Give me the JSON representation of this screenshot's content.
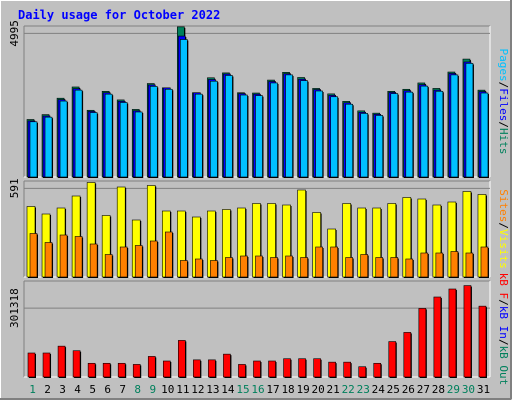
{
  "title": "Daily usage for October 2022",
  "colors": {
    "background": "#c0c0c0",
    "title": "#0000ff",
    "grid": "#808080",
    "hits": "#00805c",
    "files": "#0000ff",
    "pages": "#00c0ff",
    "visits": "#ffff00",
    "sites": "#ff8000",
    "kbf": "#ff0000",
    "kbin": "#0000ff",
    "kbout": "#00805c",
    "weekend_day": "#00805c",
    "weekday": "#000000"
  },
  "chart_data": [
    {
      "type": "bar",
      "panel": "hits-files-pages",
      "title": "Daily usage for October 2022",
      "ylabel_parts": [
        "Pages",
        "/",
        "Files",
        "/",
        "Hits"
      ],
      "ytick": "4995",
      "ytick_value": 4995,
      "grid": true,
      "categories": [
        "1",
        "2",
        "3",
        "4",
        "5",
        "6",
        "7",
        "8",
        "9",
        "10",
        "11",
        "12",
        "13",
        "14",
        "15",
        "16",
        "17",
        "18",
        "19",
        "20",
        "21",
        "22",
        "23",
        "24",
        "25",
        "26",
        "27",
        "28",
        "29",
        "30",
        "31"
      ],
      "ylim": [
        0,
        5250
      ],
      "series": [
        {
          "name": "Hits",
          "values": [
            2000,
            2170,
            2740,
            3130,
            2320,
            2980,
            2680,
            2350,
            3250,
            3100,
            5220,
            2930,
            3450,
            3620,
            2930,
            2920,
            3370,
            3640,
            3460,
            3080,
            2890,
            2630,
            2300,
            2220,
            2980,
            3050,
            3270,
            3080,
            3650,
            4100,
            3020
          ]
        },
        {
          "name": "Files",
          "values": [
            1950,
            2120,
            2690,
            3070,
            2280,
            2930,
            2630,
            2300,
            3200,
            3100,
            4900,
            2930,
            3390,
            3580,
            2900,
            2880,
            3320,
            3590,
            3400,
            3040,
            2840,
            2580,
            2250,
            2180,
            2940,
            3000,
            3210,
            3020,
            3600,
            4000,
            2970
          ]
        },
        {
          "name": "Pages",
          "values": [
            1920,
            2080,
            2640,
            3020,
            2240,
            2880,
            2590,
            2260,
            3150,
            3050,
            4780,
            2880,
            3330,
            3530,
            2850,
            2830,
            3270,
            3550,
            3350,
            2990,
            2790,
            2530,
            2210,
            2140,
            2900,
            2950,
            3160,
            2980,
            3550,
            3950,
            2920
          ]
        }
      ]
    },
    {
      "type": "bar",
      "panel": "visits-sites",
      "ylabel_parts": [
        "Sites",
        "/",
        "Visits"
      ],
      "ytick": "591",
      "ytick_value": 591,
      "grid": true,
      "ylim": [
        0,
        640
      ],
      "series": [
        {
          "name": "Visits",
          "values": [
            470,
            420,
            460,
            540,
            630,
            410,
            600,
            380,
            610,
            440,
            440,
            400,
            440,
            450,
            460,
            490,
            490,
            480,
            580,
            430,
            320,
            490,
            460,
            460,
            490,
            530,
            520,
            480,
            500,
            570,
            550
          ]
        },
        {
          "name": "Sites",
          "values": [
            290,
            230,
            280,
            270,
            220,
            150,
            200,
            210,
            240,
            300,
            110,
            120,
            110,
            130,
            140,
            140,
            130,
            140,
            130,
            200,
            200,
            130,
            150,
            130,
            130,
            120,
            160,
            160,
            170,
            160,
            200
          ]
        }
      ]
    },
    {
      "type": "bar",
      "panel": "kbytes",
      "ylabel_parts": [
        "kB F",
        "/",
        "kB In",
        "/",
        "kB Out"
      ],
      "ytick": "301318",
      "ytick_value": 301318,
      "grid": true,
      "ylim": [
        0,
        420000
      ],
      "series": [
        {
          "name": "kB F",
          "values": [
            105000,
            105000,
            135000,
            115000,
            60000,
            60000,
            60000,
            55000,
            90000,
            70000,
            160000,
            75000,
            75000,
            100000,
            55000,
            70000,
            70000,
            80000,
            80000,
            80000,
            65000,
            65000,
            45000,
            60000,
            155000,
            195000,
            300000,
            350000,
            385000,
            400000,
            310000
          ]
        }
      ]
    }
  ],
  "xaxis": {
    "days": [
      "1",
      "2",
      "3",
      "4",
      "5",
      "6",
      "7",
      "8",
      "9",
      "10",
      "11",
      "12",
      "13",
      "14",
      "15",
      "16",
      "17",
      "18",
      "19",
      "20",
      "21",
      "22",
      "23",
      "24",
      "25",
      "26",
      "27",
      "28",
      "29",
      "30",
      "31"
    ],
    "weekend": [
      1,
      8,
      9,
      15,
      16,
      22,
      23,
      29,
      30
    ]
  }
}
